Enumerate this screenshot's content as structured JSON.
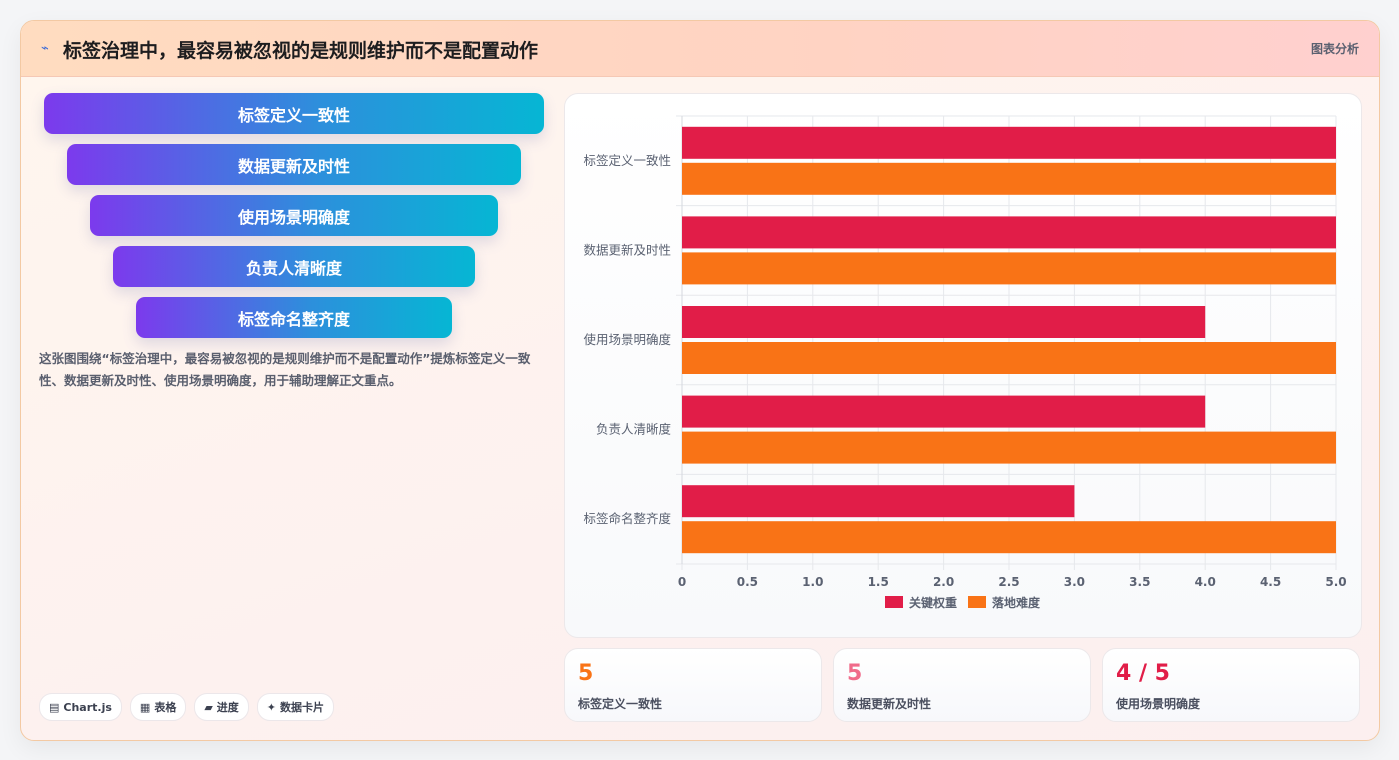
{
  "header": {
    "icon": "⌁",
    "title": "标签治理中，最容易被忽视的是规则维护而不是配置动作",
    "tag": "图表分析"
  },
  "funnel": [
    {
      "label": "标签定义一致性"
    },
    {
      "label": "数据更新及时性"
    },
    {
      "label": "使用场景明确度"
    },
    {
      "label": "负责人清晰度"
    },
    {
      "label": "标签命名整齐度"
    }
  ],
  "description": "这张图围绕“标签治理中，最容易被忽视的是规则维护而不是配置动作”提炼标签定义一致性、数据更新及时性、使用场景明确度，用于辅助理解正文重点。",
  "chips": [
    {
      "icon": "▤",
      "label": "Chart.js"
    },
    {
      "icon": "▦",
      "label": "表格"
    },
    {
      "icon": "▰",
      "label": "进度"
    },
    {
      "icon": "✦",
      "label": "数据卡片"
    }
  ],
  "stats": [
    {
      "value": "5",
      "label": "标签定义一致性",
      "color": "#f97316"
    },
    {
      "value": "5",
      "label": "数据更新及时性",
      "color": "#f06b8a"
    },
    {
      "value": "4 / 5",
      "label": "使用场景明确度",
      "color": "#e11d48"
    }
  ],
  "chart_data": {
    "type": "bar",
    "orientation": "horizontal",
    "categories": [
      "标签定义一致性",
      "数据更新及时性",
      "使用场景明确度",
      "负责人清晰度",
      "标签命名整齐度"
    ],
    "series": [
      {
        "name": "关键权重",
        "values": [
          5,
          5,
          4,
          4,
          3
        ],
        "color": "#e11d48"
      },
      {
        "name": "落地难度",
        "values": [
          5,
          5,
          5,
          5,
          5
        ],
        "color": "#f97316"
      }
    ],
    "xlim": [
      0,
      5
    ],
    "xticks": [
      "0",
      "0.5",
      "1.0",
      "1.5",
      "2.0",
      "2.5",
      "3.0",
      "3.5",
      "4.0",
      "4.5",
      "5.0"
    ],
    "grid": true,
    "legend": "bottom"
  }
}
